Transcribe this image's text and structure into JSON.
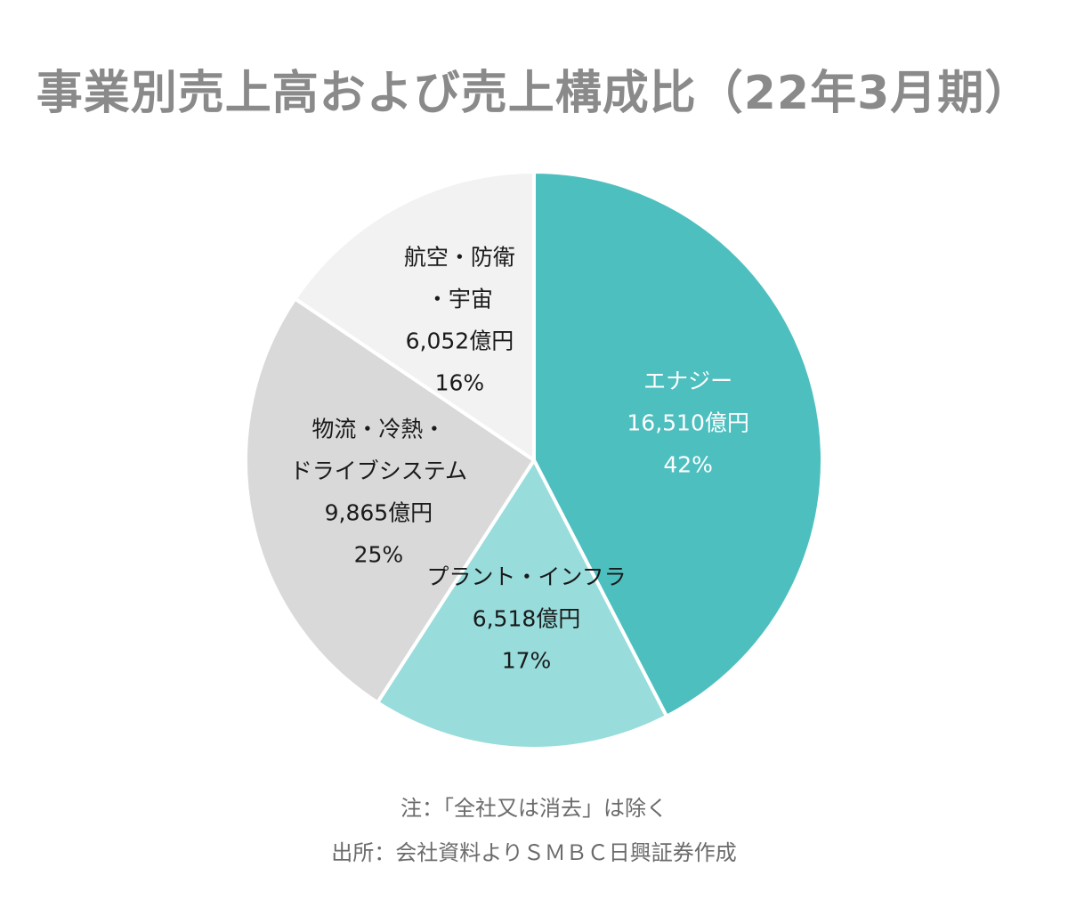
{
  "title": "事業別売上高および売上構成比（22年3月期）",
  "chart_data": {
    "type": "pie",
    "title": "事業別売上高および売上構成比（22年3月期）",
    "unit": "億円",
    "slices": [
      {
        "lines": [
          "エナジー",
          "16,510億円",
          "42%"
        ],
        "value": 16510,
        "percent": 42,
        "color": "#4dbfbf",
        "text_color": "#ffffff"
      },
      {
        "lines": [
          "プラント・インフラ",
          "6,518億円",
          "17%"
        ],
        "value": 6518,
        "percent": 17,
        "color": "#98dcdc",
        "text_color": "#1a1a1a"
      },
      {
        "lines": [
          "物流・冷熱・",
          "ドライブシステム",
          "9,865億円",
          "25%"
        ],
        "value": 9865,
        "percent": 25,
        "color": "#d9d9d9",
        "text_color": "#1a1a1a"
      },
      {
        "lines": [
          "航空・防衛",
          "・宇宙",
          "6,052億円",
          "16%"
        ],
        "value": 6052,
        "percent": 16,
        "color": "#f2f2f2",
        "text_color": "#1a1a1a"
      }
    ]
  },
  "notes": {
    "line1": "注：「全社又は消去」は除く",
    "line2": "出所：会社資料よりＳＭＢＣ日興証券作成"
  }
}
